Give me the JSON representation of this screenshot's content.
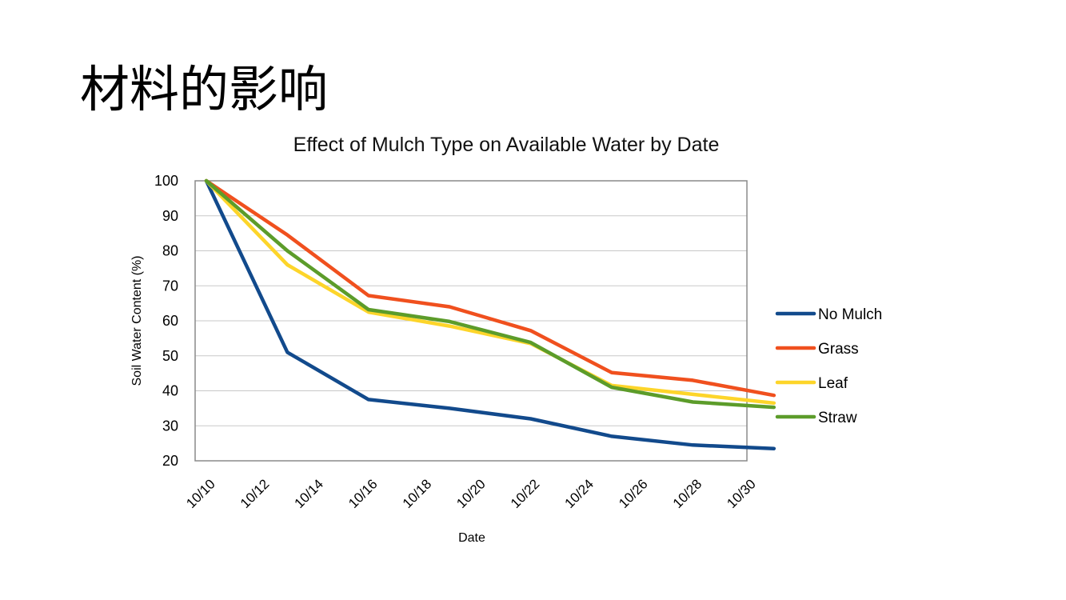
{
  "slide": {
    "title": "材料的影响"
  },
  "colors": {
    "No Mulch": "#124a8c",
    "Grass": "#f0501e",
    "Leaf": "#fdd52a",
    "Straw": "#5c9c2a",
    "grid": "#c8c8c8",
    "frame": "#8a8a8a"
  },
  "chart_data": {
    "type": "line",
    "title": "Effect of Mulch Type on Available Water by Date",
    "xlabel": "Date",
    "ylabel": "Soil Water Content (%)",
    "ylim": [
      20,
      100
    ],
    "yticks": [
      "100",
      "90",
      "80",
      "70",
      "60",
      "50",
      "40",
      "30",
      "20"
    ],
    "xticks": [
      "10/10",
      "10/12",
      "10/14",
      "10/16",
      "10/18",
      "10/20",
      "10/22",
      "10/24",
      "10/26",
      "10/28",
      "10/30"
    ],
    "grid": true,
    "legend_position": "right",
    "x": [
      "10/10",
      "10/13",
      "10/16",
      "10/19",
      "10/22",
      "10/25",
      "10/28",
      "10/31"
    ],
    "series": [
      {
        "name": "No Mulch",
        "values": [
          100,
          51,
          37.5,
          35,
          32,
          27,
          24.5,
          23.5
        ]
      },
      {
        "name": "Grass",
        "values": [
          100,
          84.5,
          67.2,
          64,
          57.2,
          45.2,
          43,
          38.7
        ]
      },
      {
        "name": "Leaf",
        "values": [
          100,
          76,
          62.5,
          58.5,
          53.5,
          41.5,
          39,
          36.5
        ]
      },
      {
        "name": "Straw",
        "values": [
          100,
          80,
          63.2,
          59.8,
          53.8,
          41,
          36.8,
          35.3
        ]
      }
    ]
  }
}
